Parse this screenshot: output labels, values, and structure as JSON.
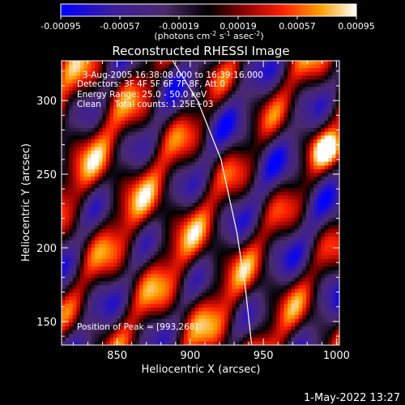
{
  "chart_data": {
    "type": "heatmap",
    "title": "Reconstructed RHESSI Image",
    "xlabel": "Heliocentric X (arcsec)",
    "ylabel": "Heliocentric Y (arcsec)",
    "xlim": [
      812,
      1002
    ],
    "ylim": [
      134,
      327
    ],
    "xticks": [
      850,
      900,
      950,
      1000
    ],
    "yticks": [
      150,
      200,
      250,
      300
    ],
    "colorbar": {
      "range": [
        -0.00095,
        0.00095
      ],
      "ticks": [
        "-0.00095",
        "-0.00057",
        "-0.00019",
        "0.00019",
        "0.00057",
        "0.00095"
      ],
      "label_main": "(photons cm",
      "label_exp1": "-2",
      "label_mid1": " s",
      "label_exp2": "-1",
      "label_mid2": " asec",
      "label_exp3": "-2",
      "label_end": ")"
    },
    "annotations": {
      "time": "3-Aug-2005 16:38:08.000 to 16:39:16.000",
      "detectors": "Detectors: 3F 4F 5F 6F 7F 8F, Att 0",
      "energy": "Energy Range: 25.0 - 50.0 keV",
      "counts": "Clean     Total counts: 1.25E+03",
      "peak": "Position of Peak = [993,268]"
    },
    "limb_curve": [
      [
        888,
        327
      ],
      [
        905,
        300
      ],
      [
        921,
        260
      ],
      [
        932,
        210
      ],
      [
        938,
        170
      ],
      [
        942,
        134
      ]
    ],
    "peak_position": [
      993,
      268
    ],
    "footer": "1-May-2022 13:27"
  }
}
